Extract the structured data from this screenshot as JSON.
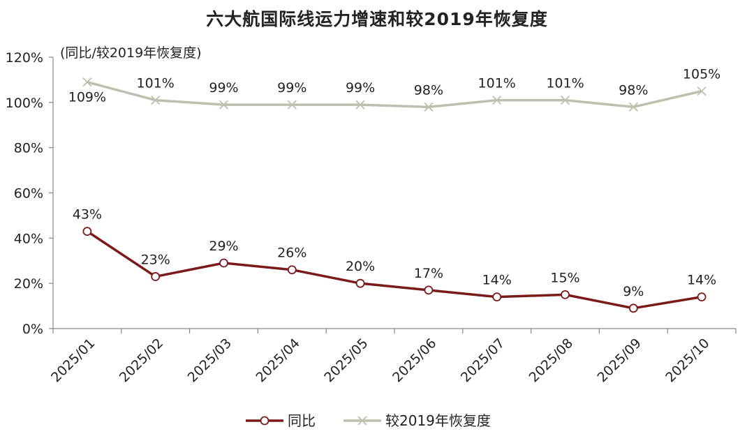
{
  "chart_data": {
    "type": "line",
    "title": "六大航国际线运力增速和较2019年恢复度",
    "unit_note": "(同比/较2019年恢复度)",
    "categories": [
      "2025/01",
      "2025/02",
      "2025/03",
      "2025/04",
      "2025/05",
      "2025/06",
      "2025/07",
      "2025/08",
      "2025/09",
      "2025/10"
    ],
    "y_ticks": [
      "0%",
      "20%",
      "40%",
      "60%",
      "80%",
      "100%",
      "120%"
    ],
    "ylim": [
      0,
      120
    ],
    "grid": false,
    "legend_position": "bottom",
    "series": [
      {
        "name": "同比",
        "color": "#7a1a1a",
        "marker": "circle",
        "values": [
          43,
          23,
          29,
          26,
          20,
          17,
          14,
          15,
          9,
          14
        ],
        "labels": [
          "43%",
          "23%",
          "29%",
          "26%",
          "20%",
          "17%",
          "14%",
          "15%",
          "9%",
          "14%"
        ]
      },
      {
        "name": "较2019年恢复度",
        "color": "#bfbfb0",
        "marker": "x",
        "values": [
          109,
          101,
          99,
          99,
          99,
          98,
          101,
          101,
          98,
          105
        ],
        "labels": [
          "109%",
          "101%",
          "99%",
          "99%",
          "99%",
          "98%",
          "101%",
          "101%",
          "98%",
          "105%"
        ]
      }
    ]
  }
}
